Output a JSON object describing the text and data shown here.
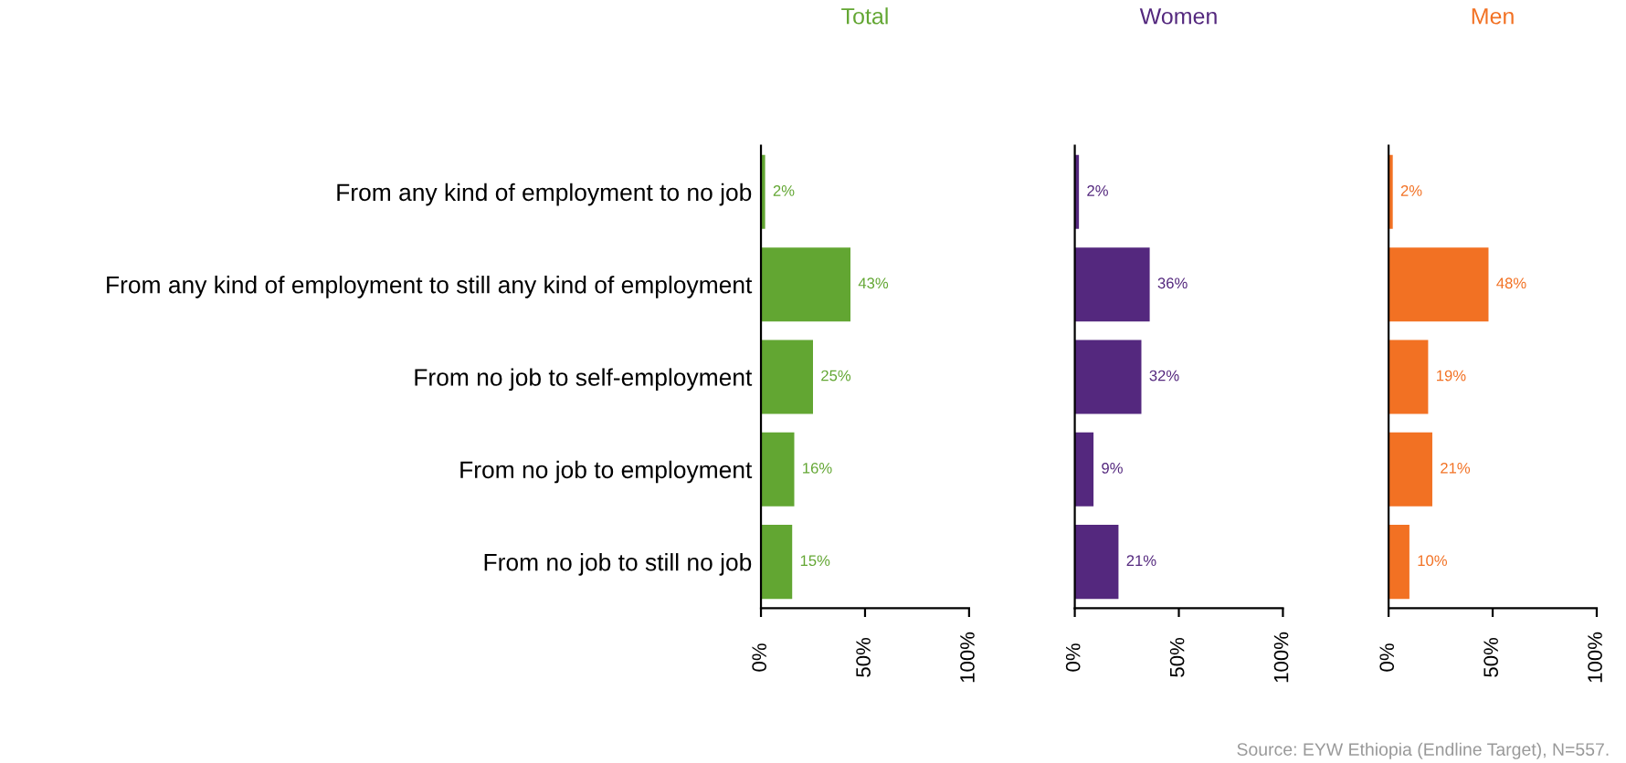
{
  "chart_data": [
    {
      "type": "bar",
      "orientation": "horizontal",
      "title": "Total",
      "color": "#62a632",
      "categories": [
        "From any kind of employment to no job",
        "From any kind of employment to still any kind of employment",
        "From no job to self-employment",
        "From no job to employment",
        "From no job to still no job"
      ],
      "values": [
        2,
        43,
        25,
        16,
        15
      ],
      "value_labels": [
        "2%",
        "43%",
        "25%",
        "16%",
        "15%"
      ],
      "xlim": [
        0,
        100
      ],
      "xticks": [
        {
          "value": 0,
          "label": "0%"
        },
        {
          "value": 50,
          "label": "50%"
        },
        {
          "value": 100,
          "label": "100%"
        }
      ],
      "grid": false,
      "legend": false
    },
    {
      "type": "bar",
      "orientation": "horizontal",
      "title": "Women",
      "color": "#54287e",
      "categories": [
        null,
        null,
        null,
        null,
        null
      ],
      "values": [
        2,
        36,
        32,
        9,
        21
      ],
      "value_labels": [
        "2%",
        "36%",
        "32%",
        "9%",
        "21%"
      ],
      "xlim": [
        0,
        100
      ],
      "xticks": [
        {
          "value": 0,
          "label": "0%"
        },
        {
          "value": 50,
          "label": "50%"
        },
        {
          "value": 100,
          "label": "100%"
        }
      ],
      "tick_labels": "x",
      "grid": false,
      "legend": false
    },
    {
      "type": "bar",
      "orientation": "horizontal",
      "title": "Men",
      "color": "#f27123",
      "categories": [
        null,
        null,
        null,
        null,
        null
      ],
      "values": [
        2,
        48,
        19,
        21,
        10
      ],
      "value_labels": [
        "2%",
        "48%",
        "19%",
        "21%",
        "10%"
      ],
      "xlim": [
        0,
        100
      ],
      "xticks": [
        {
          "value": 0,
          "label": "0%"
        },
        {
          "value": 50,
          "label": "50%"
        },
        {
          "value": 100,
          "label": "100%"
        }
      ],
      "tick_labels": "x",
      "grid": false,
      "legend": false,
      "annotations": [
        "Source: EYW Ethiopia (Endline Target), N=557."
      ]
    }
  ]
}
